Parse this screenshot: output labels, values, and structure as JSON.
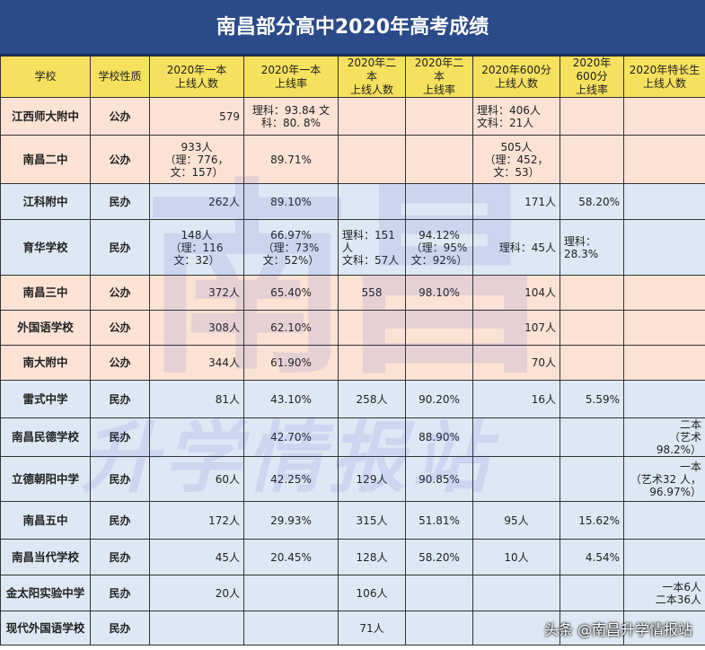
{
  "title": "南昌部分高中2020年高考成绩",
  "headers": [
    [
      "学校"
    ],
    [
      "学校性质"
    ],
    [
      "2020年一本",
      "上线人数"
    ],
    [
      "2020年一本",
      "上线率"
    ],
    [
      "2020年二本",
      "上线人数"
    ],
    [
      "2020年二本",
      "上线率"
    ],
    [
      "2020年600分",
      "上线人数"
    ],
    [
      "2020年600分",
      "上线率"
    ],
    [
      "2020年特长生",
      "上线人数"
    ]
  ],
  "rows": [
    {
      "name": "江西师大附中",
      "type": "公办",
      "cells": [
        [
          "579"
        ],
        [
          "理科：93.84 文",
          "科：80. 8%"
        ],
        [
          ""
        ],
        [
          ""
        ],
        [
          "理科：406人",
          "文科：21人"
        ],
        [
          ""
        ],
        [
          ""
        ]
      ]
    },
    {
      "name": "南昌二中",
      "type": "公办",
      "cells": [
        [
          "933人",
          "（理：776，",
          "文：157）"
        ],
        [
          "89.71%"
        ],
        [
          ""
        ],
        [
          ""
        ],
        [
          "505人",
          "（理：452，",
          "文：53）"
        ],
        [
          ""
        ],
        [
          ""
        ]
      ]
    },
    {
      "name": "江科附中",
      "type": "民办",
      "cells": [
        [
          "262人"
        ],
        [
          "89.10%"
        ],
        [
          ""
        ],
        [
          ""
        ],
        [
          "171人"
        ],
        [
          "58.20%"
        ],
        [
          ""
        ]
      ]
    },
    {
      "name": "育华学校",
      "type": "民办",
      "cells": [
        [
          "148人",
          "（理：116",
          "文：32）"
        ],
        [
          "66.97%",
          "（理：73%",
          "文：52%）"
        ],
        [
          "理科：151人",
          "文科：57人"
        ],
        [
          "94.12%",
          "（理：95%",
          "文：92%）"
        ],
        [
          "理科：45人"
        ],
        [
          "理科：28.3%"
        ],
        [
          ""
        ]
      ]
    },
    {
      "name": "南昌三中",
      "type": "公办",
      "cells": [
        [
          "372人"
        ],
        [
          "65.40%"
        ],
        [
          "558"
        ],
        [
          "98.10%"
        ],
        [
          "104人"
        ],
        [
          ""
        ],
        [
          ""
        ]
      ]
    },
    {
      "name": "外国语学校",
      "type": "公办",
      "cells": [
        [
          "308人"
        ],
        [
          "62.10%"
        ],
        [
          ""
        ],
        [
          ""
        ],
        [
          "107人"
        ],
        [
          ""
        ],
        [
          ""
        ]
      ]
    },
    {
      "name": "南大附中",
      "type": "公办",
      "cells": [
        [
          "344人"
        ],
        [
          "61.90%"
        ],
        [
          ""
        ],
        [
          ""
        ],
        [
          "70人"
        ],
        [
          ""
        ],
        [
          ""
        ]
      ]
    },
    {
      "name": "雷式中学",
      "type": "民办",
      "cells": [
        [
          "81人"
        ],
        [
          "43.10%"
        ],
        [
          "258人"
        ],
        [
          "90.20%"
        ],
        [
          "16人"
        ],
        [
          "5.59%"
        ],
        [
          ""
        ]
      ]
    },
    {
      "name": "南昌民德学校",
      "type": "民办",
      "cells": [
        [
          ""
        ],
        [
          "42.70%"
        ],
        [
          ""
        ],
        [
          "88.90%"
        ],
        [
          ""
        ],
        [
          ""
        ],
        [
          "二本",
          "（艺术 98.2%）"
        ]
      ]
    },
    {
      "name": "立德朝阳中学",
      "type": "民办",
      "cells": [
        [
          "60人"
        ],
        [
          "42.25%"
        ],
        [
          "129人"
        ],
        [
          "90.85%"
        ],
        [
          ""
        ],
        [
          ""
        ],
        [
          "一本",
          "（艺术32 人，",
          "96.97%）"
        ]
      ]
    },
    {
      "name": "南昌五中",
      "type": "民办",
      "cells": [
        [
          "172人"
        ],
        [
          "29.93%"
        ],
        [
          "315人"
        ],
        [
          "51.81%"
        ],
        [
          "95人"
        ],
        [
          "15.62%"
        ],
        [
          ""
        ]
      ]
    },
    {
      "name": "南昌当代学校",
      "type": "民办",
      "cells": [
        [
          "45人"
        ],
        [
          "20.45%"
        ],
        [
          "128人"
        ],
        [
          "58.20%"
        ],
        [
          "10人"
        ],
        [
          "4.54%"
        ],
        [
          ""
        ]
      ]
    },
    {
      "name": "金太阳实验中学",
      "type": "民办",
      "cells": [
        [
          "20人"
        ],
        [
          ""
        ],
        [
          "106人"
        ],
        [
          ""
        ],
        [
          ""
        ],
        [
          ""
        ],
        [
          "一本6人",
          "二本36人"
        ]
      ]
    },
    {
      "name": "现代外国语学校",
      "type": "民办",
      "cells": [
        [
          ""
        ],
        [
          ""
        ],
        [
          "71人"
        ],
        [
          ""
        ],
        [
          ""
        ],
        [
          ""
        ],
        [
          ""
        ]
      ]
    }
  ],
  "watermark": {
    "big": "南昌",
    "row": "升学情报站"
  },
  "credit": "头条 @南昌升学情报站",
  "colors": {
    "title_bg": "#2a4a8a",
    "header_bg": "#f6e15e",
    "public_row": "#fbe2d5",
    "private_row": "#dde8f4"
  }
}
